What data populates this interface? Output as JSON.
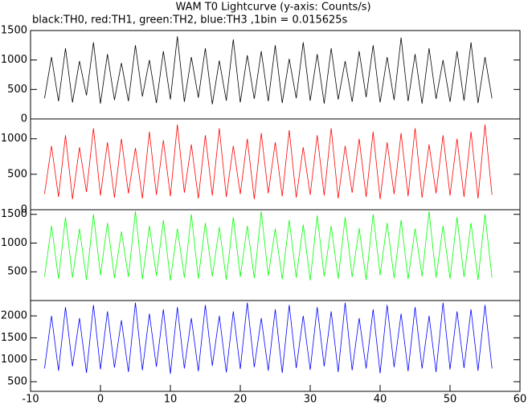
{
  "chart_data": [
    {
      "type": "line",
      "title": "WAM T0 Lightcurve (y-axis: Counts/s)",
      "subtitle": "black:TH0, red:TH1, green:TH2, blue:TH3 ,1bin = 0.015625s",
      "x": [
        -8,
        -7,
        -6,
        -5,
        -4,
        -3,
        -2,
        -1,
        0,
        1,
        2,
        3,
        4,
        5,
        6,
        7,
        8,
        9,
        10,
        11,
        12,
        13,
        14,
        15,
        16,
        17,
        18,
        19,
        20,
        21,
        22,
        23,
        24,
        25,
        26,
        27,
        28,
        29,
        30,
        31,
        32,
        33,
        34,
        35,
        36,
        37,
        38,
        39,
        40,
        41,
        42,
        43,
        44,
        45,
        46,
        47,
        48,
        49,
        50,
        51,
        52,
        53,
        54,
        55,
        56
      ],
      "series": [
        {
          "color": "#000000",
          "values": [
            350,
            1050,
            300,
            1200,
            280,
            980,
            400,
            1300,
            260,
            1100,
            320,
            950,
            300,
            1250,
            380,
            1000,
            270,
            1150,
            330,
            1400,
            290,
            1050,
            360,
            1200,
            250,
            990,
            310,
            1350,
            280,
            1080,
            340,
            1150,
            300,
            1250,
            270,
            1020,
            350,
            1300,
            310,
            1100,
            260,
            1200,
            330,
            980,
            290,
            1150,
            370,
            1250,
            280,
            1050,
            320,
            1380,
            300,
            1100,
            260,
            1200,
            340,
            1000,
            290,
            1150,
            310,
            1300,
            270,
            1050,
            350
          ]
        }
      ],
      "xlim": [
        -10,
        60
      ],
      "ylim": [
        0,
        1500
      ],
      "yticks": [
        0,
        500,
        1000,
        1500
      ]
    },
    {
      "type": "line",
      "x": [
        -8,
        -7,
        -6,
        -5,
        -4,
        -3,
        -2,
        -1,
        0,
        1,
        2,
        3,
        4,
        5,
        6,
        7,
        8,
        9,
        10,
        11,
        12,
        13,
        14,
        15,
        16,
        17,
        18,
        19,
        20,
        21,
        22,
        23,
        24,
        25,
        26,
        27,
        28,
        29,
        30,
        31,
        32,
        33,
        34,
        35,
        36,
        37,
        38,
        39,
        40,
        41,
        42,
        43,
        44,
        45,
        46,
        47,
        48,
        49,
        50,
        51,
        52,
        53,
        54,
        55,
        56
      ],
      "series": [
        {
          "color": "#ff0000",
          "values": [
            220,
            900,
            180,
            1050,
            150,
            880,
            250,
            1150,
            200,
            950,
            170,
            1000,
            230,
            870,
            160,
            1100,
            210,
            980,
            190,
            1200,
            240,
            920,
            160,
            1050,
            200,
            1150,
            180,
            900,
            220,
            1000,
            150,
            1080,
            230,
            950,
            190,
            1120,
            170,
            880,
            210,
            1050,
            200,
            1150,
            160,
            900,
            240,
            1000,
            180,
            1100,
            150,
            950,
            220,
            1080,
            190,
            1150,
            170,
            920,
            230,
            1050,
            200,
            1000,
            180,
            1100,
            160,
            1200,
            210
          ]
        }
      ],
      "xlim": [
        -10,
        60
      ],
      "ylim": [
        0,
        1280
      ],
      "yticks": [
        0,
        500,
        1000
      ]
    },
    {
      "type": "line",
      "x": [
        -8,
        -7,
        -6,
        -5,
        -4,
        -3,
        -2,
        -1,
        0,
        1,
        2,
        3,
        4,
        5,
        6,
        7,
        8,
        9,
        10,
        11,
        12,
        13,
        14,
        15,
        16,
        17,
        18,
        19,
        20,
        21,
        22,
        23,
        24,
        25,
        26,
        27,
        28,
        29,
        30,
        31,
        32,
        33,
        34,
        35,
        36,
        37,
        38,
        39,
        40,
        41,
        42,
        43,
        44,
        45,
        46,
        47,
        48,
        49,
        50,
        51,
        52,
        53,
        54,
        55,
        56
      ],
      "series": [
        {
          "color": "#00ff00",
          "values": [
            420,
            1300,
            380,
            1450,
            400,
            1250,
            360,
            1500,
            440,
            1350,
            390,
            1200,
            410,
            1550,
            370,
            1300,
            430,
            1400,
            350,
            1250,
            400,
            1500,
            380,
            1350,
            420,
            1280,
            360,
            1450,
            410,
            1300,
            390,
            1550,
            430,
            1250,
            370,
            1400,
            400,
            1320,
            350,
            1480,
            420,
            1300,
            380,
            1450,
            410,
            1260,
            360,
            1500,
            440,
            1350,
            390,
            1400,
            370,
            1250,
            420,
            1550,
            400,
            1300,
            380,
            1450,
            410,
            1350,
            360,
            1500,
            400
          ]
        }
      ],
      "xlim": [
        -10,
        60
      ],
      "ylim": [
        0,
        1580
      ],
      "yticks": [
        500,
        1000,
        1500
      ]
    },
    {
      "type": "line",
      "x": [
        -8,
        -7,
        -6,
        -5,
        -4,
        -3,
        -2,
        -1,
        0,
        1,
        2,
        3,
        4,
        5,
        6,
        7,
        8,
        9,
        10,
        11,
        12,
        13,
        14,
        15,
        16,
        17,
        18,
        19,
        20,
        21,
        22,
        23,
        24,
        25,
        26,
        27,
        28,
        29,
        30,
        31,
        32,
        33,
        34,
        35,
        36,
        37,
        38,
        39,
        40,
        41,
        42,
        43,
        44,
        45,
        46,
        47,
        48,
        49,
        50,
        51,
        52,
        53,
        54,
        55,
        56
      ],
      "series": [
        {
          "color": "#0000ff",
          "values": [
            800,
            2000,
            750,
            2200,
            850,
            1950,
            700,
            2250,
            780,
            2100,
            820,
            1900,
            720,
            2300,
            760,
            2050,
            840,
            2150,
            680,
            2200,
            800,
            1950,
            740,
            2250,
            860,
            2000,
            710,
            2100,
            790,
            2300,
            830,
            1950,
            750,
            2150,
            700,
            2250,
            810,
            2000,
            770,
            2200,
            850,
            2100,
            720,
            2300,
            760,
            1950,
            800,
            2150,
            690,
            2250,
            830,
            2050,
            740,
            2200,
            800,
            2000,
            720,
            2300,
            780,
            2100,
            810,
            2150,
            750,
            2250,
            800
          ]
        }
      ],
      "xlim": [
        -10,
        60
      ],
      "ylim": [
        280,
        2350
      ],
      "yticks": [
        500,
        1000,
        1500,
        2000
      ],
      "xticks": [
        -10,
        0,
        10,
        20,
        30,
        40,
        50,
        60
      ]
    }
  ]
}
